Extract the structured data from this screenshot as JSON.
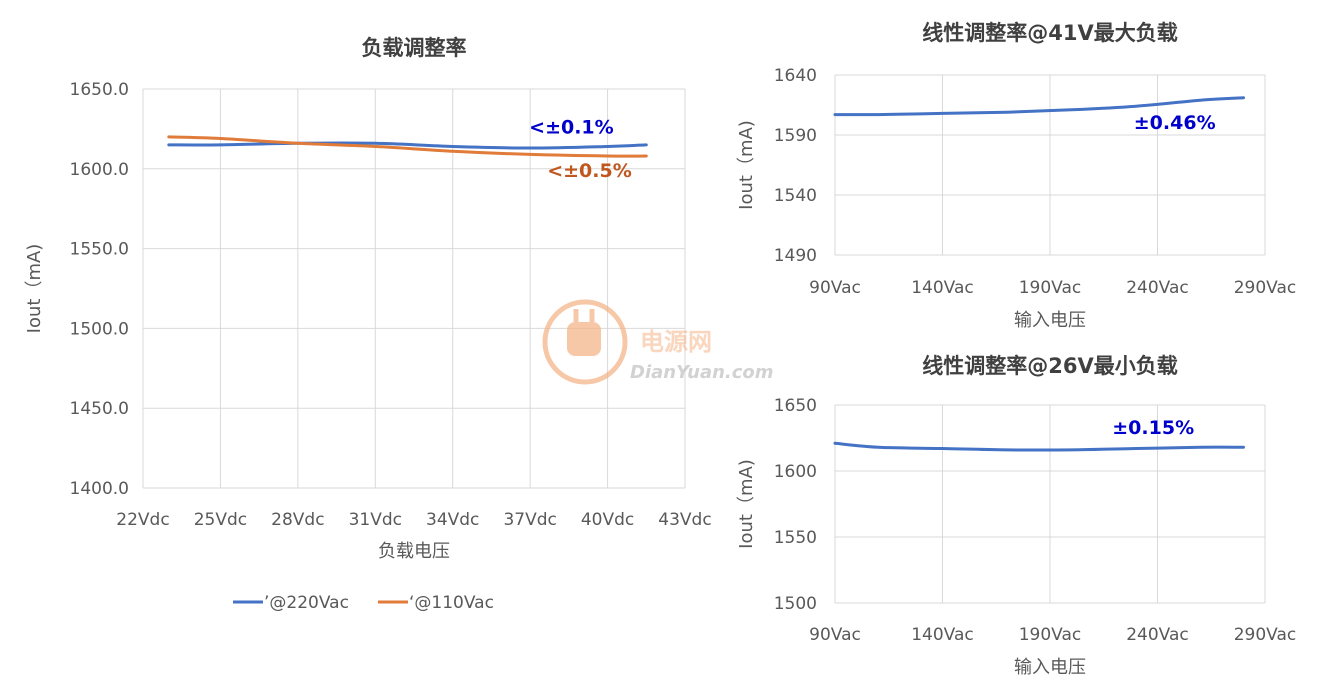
{
  "colors": {
    "blue": "#4472c4",
    "orange": "#e07b39",
    "annot_blue": "#0000cc",
    "annot_orange": "#c0571f"
  },
  "watermark": {
    "name": "电源网",
    "site": "DianYuan.com"
  },
  "chart_data": [
    {
      "type": "line",
      "title": "负载调整率",
      "xlabel": "负载电压",
      "ylabel": "Iout（mA)",
      "categories": [
        "22Vdc",
        "25Vdc",
        "28Vdc",
        "31Vdc",
        "34Vdc",
        "37Vdc",
        "40Vdc",
        "43Vdc"
      ],
      "x_values": [
        22,
        25,
        28,
        31,
        34,
        37,
        40,
        43
      ],
      "xlim": [
        22,
        43
      ],
      "ylim": [
        1400,
        1650
      ],
      "yticks": [
        "1400.0",
        "1450.0",
        "1500.0",
        "1550.0",
        "1600.0",
        "1650.0"
      ],
      "ytick_values": [
        1400,
        1450,
        1500,
        1550,
        1600,
        1650
      ],
      "grid": true,
      "legend": "bottom",
      "series": [
        {
          "name": "’@220Vac",
          "color": "#4472c4",
          "x": [
            23,
            25,
            28,
            31,
            34,
            37,
            40,
            41.5
          ],
          "y": [
            1615,
            1615,
            1616,
            1616,
            1614,
            1613,
            1614,
            1615
          ]
        },
        {
          "name": "‘@110Vac",
          "color": "#e07b39",
          "x": [
            23,
            25,
            28,
            31,
            34,
            37,
            40,
            41.5
          ],
          "y": [
            1620,
            1619,
            1616,
            1614,
            1611,
            1609,
            1608,
            1608
          ]
        }
      ],
      "annotations": [
        {
          "text": "<±0.1%",
          "color": "#0000cc",
          "x": 38.6,
          "y": 1622
        },
        {
          "text": "<±0.5%",
          "color": "#c0571f",
          "x": 39.3,
          "y": 1595
        }
      ]
    },
    {
      "type": "line",
      "title": "线性调整率@41V最大负载",
      "xlabel": "输入电压",
      "ylabel": "Iout（mA)",
      "categories": [
        "90Vac",
        "140Vac",
        "190Vac",
        "240Vac",
        "290Vac"
      ],
      "x_values": [
        90,
        140,
        190,
        240,
        290
      ],
      "xlim": [
        90,
        290
      ],
      "ylim": [
        1490,
        1640
      ],
      "yticks": [
        "1490",
        "1540",
        "1590",
        "1640"
      ],
      "ytick_values": [
        1490,
        1540,
        1590,
        1640
      ],
      "grid": true,
      "series": [
        {
          "color": "#4472c4",
          "x": [
            90,
            110,
            140,
            170,
            200,
            230,
            260,
            280
          ],
          "y": [
            1607,
            1607,
            1608,
            1609,
            1611,
            1614,
            1619,
            1621
          ]
        }
      ],
      "annotations": [
        {
          "text": "±0.46%",
          "color": "#0000cc",
          "x": 248,
          "y": 1595
        }
      ]
    },
    {
      "type": "line",
      "title": "线性调整率@26V最小负载",
      "xlabel": "输入电压",
      "ylabel": "Iout（mA)",
      "categories": [
        "90Vac",
        "140Vac",
        "190Vac",
        "240Vac",
        "290Vac"
      ],
      "x_values": [
        90,
        140,
        190,
        240,
        290
      ],
      "xlim": [
        90,
        290
      ],
      "ylim": [
        1500,
        1650
      ],
      "yticks": [
        "1500",
        "1550",
        "1600",
        "1650"
      ],
      "ytick_values": [
        1500,
        1550,
        1600,
        1650
      ],
      "grid": true,
      "series": [
        {
          "color": "#4472c4",
          "x": [
            90,
            110,
            140,
            170,
            200,
            230,
            260,
            280
          ],
          "y": [
            1621,
            1618,
            1617,
            1616,
            1616,
            1617,
            1618,
            1618
          ]
        }
      ],
      "annotations": [
        {
          "text": "±0.15%",
          "color": "#0000cc",
          "x": 238,
          "y": 1628
        }
      ]
    }
  ]
}
